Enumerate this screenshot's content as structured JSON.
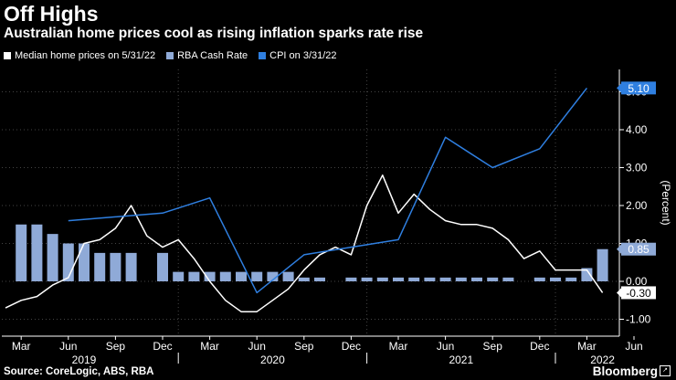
{
  "header": {
    "title": "Off Highs",
    "subtitle": "Australian home prices cool as rising inflation sparks rate rise"
  },
  "legend": [
    {
      "label": "Median home prices on 5/31/22",
      "color": "#ffffff"
    },
    {
      "label": "RBA Cash Rate",
      "color": "#8faad7"
    },
    {
      "label": "CPI on 3/31/22",
      "color": "#2f7fe0"
    }
  ],
  "footer": {
    "source": "Source: CoreLogic, ABS, RBA",
    "brand": "Bloomberg"
  },
  "chart_data": {
    "type": "line",
    "ylabel": "(Percent)",
    "ylim": [
      -1.2,
      5.6
    ],
    "yticks": [
      "5.00",
      "4.00",
      "3.00",
      "2.00",
      "1.00",
      "0.00",
      "-1.00"
    ],
    "ytick_values": [
      5,
      4,
      3,
      2,
      1,
      0,
      -1
    ],
    "x_month_ticks": [
      "Mar",
      "Jun",
      "Sep",
      "Dec",
      "Mar",
      "Jun",
      "Sep",
      "Dec",
      "Mar",
      "Jun",
      "Sep",
      "Dec",
      "Mar",
      "Jun"
    ],
    "x_year_labels": [
      "2019",
      "2020",
      "2021",
      "2022"
    ],
    "x_range": [
      "2019-03",
      "2022-06"
    ],
    "grid": true,
    "last_value_labels": {
      "cpi": "5.10",
      "rba": "0.85",
      "home_prices": "-0.30"
    },
    "series": [
      {
        "name": "RBA Cash Rate",
        "kind": "bar",
        "color": "#8faad7",
        "points": [
          [
            "2019-03",
            1.5
          ],
          [
            "2019-04",
            1.5
          ],
          [
            "2019-05",
            1.25
          ],
          [
            "2019-06",
            1.0
          ],
          [
            "2019-07",
            1.0
          ],
          [
            "2019-08",
            0.75
          ],
          [
            "2019-09",
            0.75
          ],
          [
            "2019-10",
            0.75
          ],
          [
            "2019-12",
            0.75
          ],
          [
            "2020-01",
            0.25
          ],
          [
            "2020-02",
            0.25
          ],
          [
            "2020-03",
            0.25
          ],
          [
            "2020-04",
            0.25
          ],
          [
            "2020-05",
            0.25
          ],
          [
            "2020-06",
            0.25
          ],
          [
            "2020-07",
            0.25
          ],
          [
            "2020-08",
            0.25
          ],
          [
            "2020-09",
            0.1
          ],
          [
            "2020-10",
            0.1
          ],
          [
            "2020-12",
            0.1
          ],
          [
            "2021-01",
            0.1
          ],
          [
            "2021-02",
            0.1
          ],
          [
            "2021-03",
            0.1
          ],
          [
            "2021-04",
            0.1
          ],
          [
            "2021-05",
            0.1
          ],
          [
            "2021-06",
            0.1
          ],
          [
            "2021-07",
            0.1
          ],
          [
            "2021-08",
            0.1
          ],
          [
            "2021-09",
            0.1
          ],
          [
            "2021-10",
            0.1
          ],
          [
            "2021-12",
            0.1
          ],
          [
            "2022-01",
            0.1
          ],
          [
            "2022-02",
            0.1
          ],
          [
            "2022-03",
            0.35
          ],
          [
            "2022-04",
            0.85
          ]
        ]
      },
      {
        "name": "Median home prices on 5/31/22",
        "kind": "line",
        "color": "#ffffff",
        "points": [
          [
            "2019-02",
            -0.7
          ],
          [
            "2019-03",
            -0.5
          ],
          [
            "2019-04",
            -0.4
          ],
          [
            "2019-05",
            -0.1
          ],
          [
            "2019-06",
            0.1
          ],
          [
            "2019-07",
            1.0
          ],
          [
            "2019-08",
            1.1
          ],
          [
            "2019-09",
            1.4
          ],
          [
            "2019-10",
            2.0
          ],
          [
            "2019-11",
            1.2
          ],
          [
            "2019-12",
            0.9
          ],
          [
            "2020-01",
            1.1
          ],
          [
            "2020-02",
            0.6
          ],
          [
            "2020-03",
            0.0
          ],
          [
            "2020-04",
            -0.5
          ],
          [
            "2020-05",
            -0.8
          ],
          [
            "2020-06",
            -0.8
          ],
          [
            "2020-07",
            -0.5
          ],
          [
            "2020-08",
            -0.2
          ],
          [
            "2020-09",
            0.3
          ],
          [
            "2020-10",
            0.7
          ],
          [
            "2020-11",
            0.9
          ],
          [
            "2020-12",
            0.7
          ],
          [
            "2021-01",
            2.0
          ],
          [
            "2021-02",
            2.8
          ],
          [
            "2021-03",
            1.8
          ],
          [
            "2021-04",
            2.3
          ],
          [
            "2021-05",
            1.9
          ],
          [
            "2021-06",
            1.6
          ],
          [
            "2021-07",
            1.5
          ],
          [
            "2021-08",
            1.5
          ],
          [
            "2021-09",
            1.4
          ],
          [
            "2021-10",
            1.1
          ],
          [
            "2021-11",
            0.6
          ],
          [
            "2021-12",
            0.8
          ],
          [
            "2022-01",
            0.3
          ],
          [
            "2022-02",
            0.3
          ],
          [
            "2022-03",
            0.3
          ],
          [
            "2022-04",
            -0.3
          ]
        ]
      },
      {
        "name": "CPI on 3/31/22",
        "kind": "line",
        "color": "#2f7fe0",
        "points": [
          [
            "2019-06",
            1.6
          ],
          [
            "2019-09",
            1.7
          ],
          [
            "2019-12",
            1.8
          ],
          [
            "2020-03",
            2.2
          ],
          [
            "2020-06",
            -0.3
          ],
          [
            "2020-09",
            0.7
          ],
          [
            "2020-12",
            0.9
          ],
          [
            "2021-03",
            1.1
          ],
          [
            "2021-06",
            3.8
          ],
          [
            "2021-09",
            3.0
          ],
          [
            "2021-12",
            3.5
          ],
          [
            "2022-03",
            5.1
          ]
        ]
      }
    ]
  }
}
